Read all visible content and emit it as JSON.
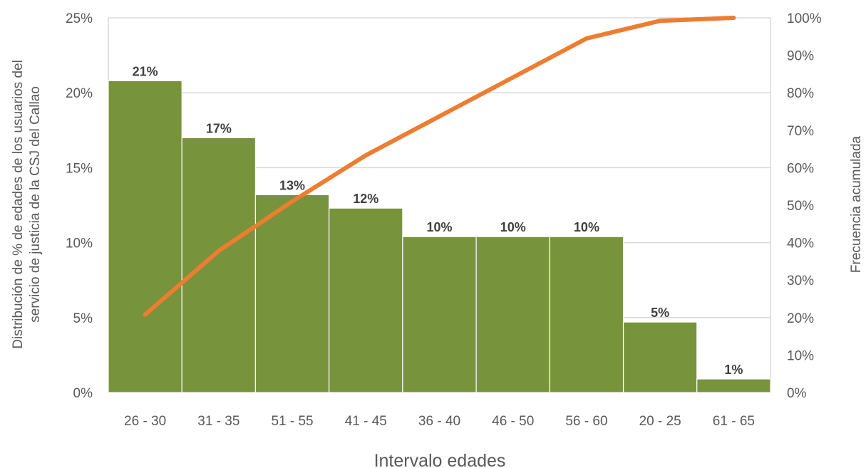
{
  "chart_data": {
    "type": "bar",
    "categories": [
      "26 - 30",
      "31 - 35",
      "51 - 55",
      "41 - 45",
      "36 - 40",
      "46 - 50",
      "56 - 60",
      "20 - 25",
      "61 - 65"
    ],
    "series": [
      {
        "type": "bar",
        "axis": "left",
        "values": [
          20.8,
          17.0,
          13.2,
          12.3,
          10.4,
          10.4,
          10.4,
          4.7,
          0.9
        ],
        "data_labels": [
          "21%",
          "17%",
          "13%",
          "12%",
          "10%",
          "10%",
          "10%",
          "5%",
          "1%"
        ],
        "color": "#77933c"
      },
      {
        "type": "line",
        "axis": "right",
        "values": [
          20.8,
          37.8,
          51.0,
          63.3,
          73.7,
          84.1,
          94.5,
          99.2,
          100.0
        ],
        "color": "#ed7d31"
      }
    ],
    "xlabel": "Intervalo edades",
    "ylabel_lines": [
      "Distribución de % de edades de los usuarios del",
      "servicio de justicia de la CSJ del Callao"
    ],
    "y2label": "Frecuencia acumulada",
    "ylim": [
      0,
      25
    ],
    "y2lim": [
      0,
      100
    ],
    "yticks": [
      "0%",
      "5%",
      "10%",
      "15%",
      "20%",
      "25%"
    ],
    "y2ticks": [
      "0%",
      "10%",
      "20%",
      "30%",
      "40%",
      "50%",
      "60%",
      "70%",
      "80%",
      "90%",
      "100%"
    ],
    "grid": true,
    "gridline_color": "#d9d9d9"
  }
}
